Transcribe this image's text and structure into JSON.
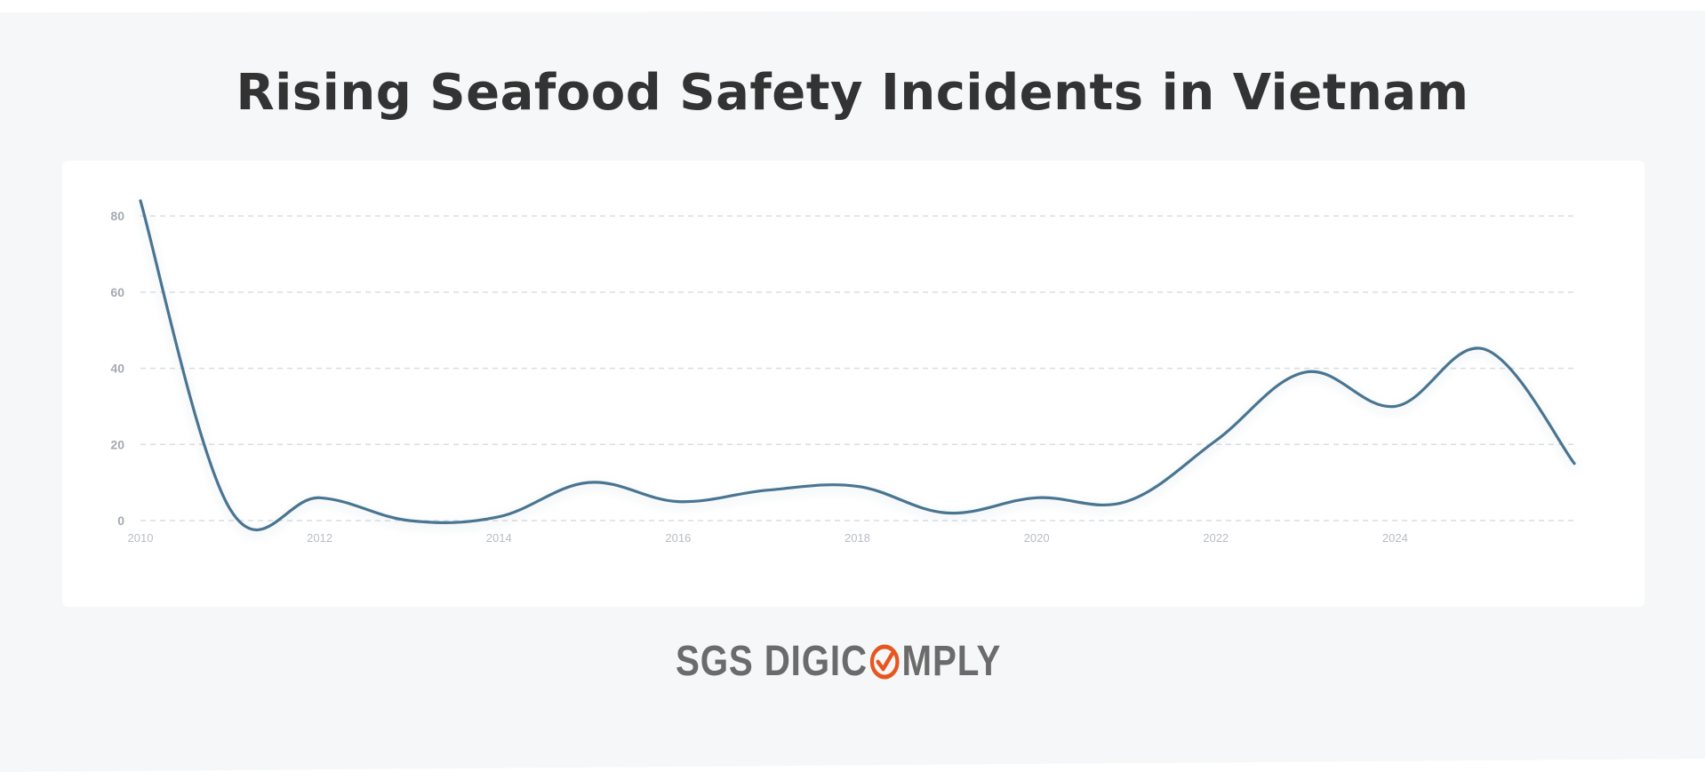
{
  "title": "Rising Seafood Safety Incidents in Vietnam",
  "logo": {
    "text_left": "SGS DIGIC",
    "text_right": "MPLY",
    "mark_icon": "check-circle-icon",
    "text_color": "#6b6b6b",
    "mark_color": "#e8561f"
  },
  "chart_data": {
    "type": "line",
    "title": "Rising Seafood Safety Incidents in Vietnam",
    "xlabel": "",
    "ylabel": "",
    "x": [
      2010,
      2011,
      2012,
      2013,
      2014,
      2015,
      2016,
      2017,
      2018,
      2019,
      2020,
      2021,
      2022,
      2023,
      2024,
      2025,
      2026
    ],
    "values": [
      84,
      3,
      6,
      0,
      1,
      10,
      5,
      8,
      9,
      2,
      6,
      5,
      21,
      39,
      30,
      45,
      15
    ],
    "xticks": [
      "2010",
      "2012",
      "2014",
      "2016",
      "2018",
      "2020",
      "2022",
      "2024"
    ],
    "xtick_values": [
      2010,
      2012,
      2014,
      2016,
      2018,
      2020,
      2022,
      2024
    ],
    "yticks": [
      "0",
      "20",
      "40",
      "60",
      "80"
    ],
    "ytick_values": [
      0,
      20,
      40,
      60,
      80
    ],
    "ylim": [
      0,
      84
    ],
    "xlim": [
      2010,
      2026
    ],
    "grid": true,
    "line_color": "#4a7491",
    "grid_color": "#d9dde2",
    "tick_color": "#a5aab2"
  }
}
